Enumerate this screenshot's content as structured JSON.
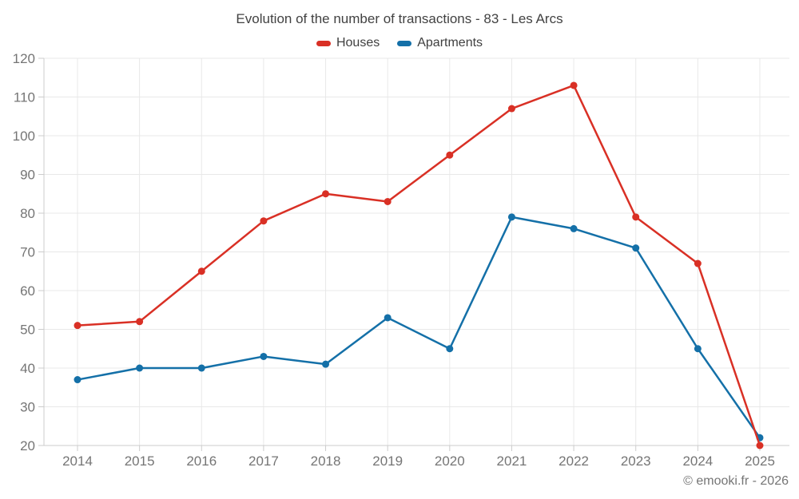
{
  "title": "Evolution of the number of transactions - 83 - Les Arcs",
  "footer": "© emooki.fr - 2026",
  "colors": {
    "grid": "#e8e8e8",
    "axis": "#cccccc",
    "tick_text": "#757575",
    "title_text": "#424242",
    "footer_text": "#757575"
  },
  "chart_data": {
    "type": "line",
    "title": "Evolution of the number of transactions - 83 - Les Arcs",
    "categories": [
      "2014",
      "2015",
      "2016",
      "2017",
      "2018",
      "2019",
      "2020",
      "2021",
      "2022",
      "2023",
      "2024",
      "2025"
    ],
    "series": [
      {
        "name": "Houses",
        "color": "#d93025",
        "values": [
          51,
          52,
          65,
          78,
          85,
          83,
          95,
          107,
          113,
          79,
          67,
          20
        ]
      },
      {
        "name": "Apartments",
        "color": "#1470a8",
        "values": [
          37,
          40,
          40,
          43,
          41,
          53,
          45,
          79,
          76,
          71,
          45,
          22
        ]
      }
    ],
    "xlabel": "",
    "ylabel": "",
    "ylim": [
      20,
      120
    ],
    "ytick_step": 10,
    "grid": true,
    "legend_position": "top",
    "marker_radius": 4.5,
    "line_width": 2.5
  }
}
